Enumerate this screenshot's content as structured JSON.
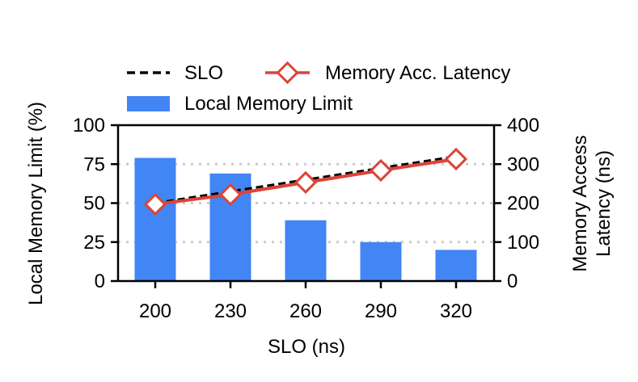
{
  "chart_data": {
    "type": "bar",
    "categories": [
      "200",
      "230",
      "260",
      "290",
      "320"
    ],
    "xlabel": "SLO (ns)",
    "ylabel_left": "Local Memory Limit (%)",
    "ylabel_right_lines": [
      "Memory Access",
      "Latency (ns)"
    ],
    "ylim_left": [
      0,
      100
    ],
    "yticks_left": [
      0,
      25,
      50,
      75,
      100
    ],
    "ylim_right": [
      0,
      400
    ],
    "yticks_right": [
      0,
      100,
      200,
      300,
      400
    ],
    "grid": "horizontal dotted",
    "legend_position": "top",
    "series": [
      {
        "name": "Local Memory Limit",
        "kind": "bar",
        "axis": "left",
        "color": "#4285f4",
        "values": [
          79,
          69,
          39,
          25,
          20
        ]
      },
      {
        "name": "SLO",
        "kind": "line",
        "style": "dashed",
        "axis": "right",
        "color": "#000000",
        "values": [
          200,
          230,
          260,
          290,
          320
        ]
      },
      {
        "name": "Memory Acc. Latency",
        "kind": "line",
        "marker": "diamond",
        "axis": "right",
        "color": "#db4437",
        "values": [
          197,
          222,
          253,
          284,
          313
        ]
      }
    ]
  }
}
